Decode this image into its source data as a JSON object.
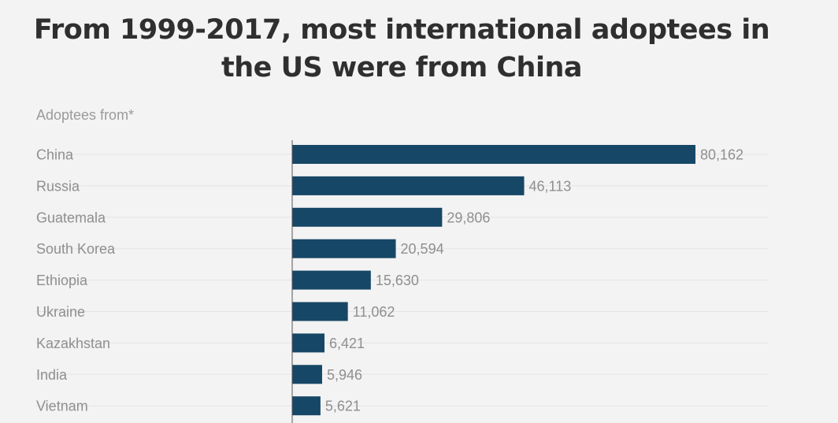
{
  "chart_data": {
    "type": "bar",
    "orientation": "horizontal",
    "title": "From 1999-2017, most international adoptees in the US were from China",
    "category_header": "Adoptees from*",
    "categories": [
      "China",
      "Russia",
      "Guatemala",
      "South Korea",
      "Ethiopia",
      "Ukraine",
      "Kazakhstan",
      "India",
      "Vietnam"
    ],
    "values": [
      80162,
      46113,
      29806,
      20594,
      15630,
      11062,
      6421,
      5946,
      5621
    ],
    "value_labels": [
      "80,162",
      "46,113",
      "29,806",
      "20,594",
      "15,630",
      "11,062",
      "6,421",
      "5,946",
      "5,621"
    ],
    "xlim": [
      0,
      80162
    ],
    "grid": true,
    "legend": "none",
    "colors": {
      "bar": "#174766",
      "label": "#8f8f8f",
      "grid": "#e4e4e4",
      "axis": "#555555"
    }
  }
}
